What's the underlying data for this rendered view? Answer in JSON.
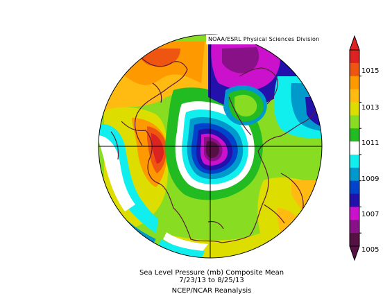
{
  "credit": "NOAA/ESRL Physical Sciences Division",
  "caption": {
    "line1": "Sea Level Pressure (mb) Composite Mean",
    "line2": "7/23/13  to 8/25/13",
    "line3": "NCEP/NCAR Reanalysis"
  },
  "colorbar": {
    "labels": [
      "1015",
      "1013",
      "1011",
      "1009",
      "1007",
      "1005"
    ],
    "colors": [
      "#dd2222",
      "#ee5511",
      "#ff9900",
      "#ffbb11",
      "#dddd00",
      "#88dd22",
      "#22bb22",
      "#ffffff",
      "#11eeee",
      "#0099cc",
      "#0044cc",
      "#2211aa",
      "#cc11cc",
      "#881188",
      "#551144"
    ]
  }
}
